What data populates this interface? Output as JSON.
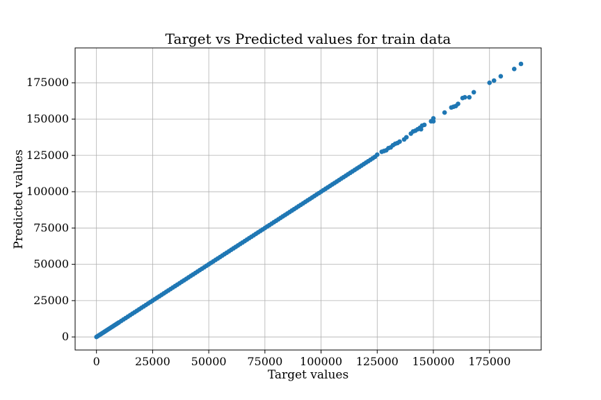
{
  "chart_data": {
    "type": "scatter",
    "title": "Target vs Predicted values for train data",
    "xlabel": "Target values",
    "ylabel": "Predicted values",
    "xlim": [
      -9500,
      198000
    ],
    "ylim": [
      -9000,
      199000
    ],
    "xticks": [
      0,
      25000,
      50000,
      75000,
      100000,
      125000,
      150000,
      175000
    ],
    "yticks": [
      0,
      25000,
      50000,
      75000,
      100000,
      125000,
      150000,
      175000
    ],
    "xtick_labels": [
      "0",
      "25000",
      "50000",
      "75000",
      "100000",
      "125000",
      "150000",
      "175000"
    ],
    "ytick_labels": [
      "0",
      "25000",
      "50000",
      "75000",
      "100000",
      "125000",
      "150000",
      "175000"
    ],
    "grid": true,
    "marker_color": "#1f77b4",
    "series": [
      {
        "points": [
          [
            0,
            0
          ],
          [
            500,
            500
          ],
          [
            1000,
            1000
          ],
          [
            1500,
            1500
          ],
          [
            2000,
            2000
          ],
          [
            2500,
            2500
          ],
          [
            3000,
            3000
          ],
          [
            3500,
            3500
          ],
          [
            4000,
            4000
          ],
          [
            4500,
            4500
          ],
          [
            5000,
            5000
          ],
          [
            5500,
            5500
          ],
          [
            6000,
            6000
          ],
          [
            6500,
            6500
          ],
          [
            7000,
            7000
          ],
          [
            7500,
            7500
          ],
          [
            8000,
            8000
          ],
          [
            8500,
            8500
          ],
          [
            9000,
            9000
          ],
          [
            9500,
            9500
          ],
          [
            10000,
            10000
          ],
          [
            11000,
            11000
          ],
          [
            12000,
            12000
          ],
          [
            13000,
            13000
          ],
          [
            14000,
            14000
          ],
          [
            15000,
            15000
          ],
          [
            16000,
            16000
          ],
          [
            17000,
            17000
          ],
          [
            18000,
            18000
          ],
          [
            19000,
            19000
          ],
          [
            20000,
            20000
          ],
          [
            21000,
            21000
          ],
          [
            22000,
            22000
          ],
          [
            23000,
            23000
          ],
          [
            24000,
            24000
          ],
          [
            25000,
            25000
          ],
          [
            26000,
            26000
          ],
          [
            27000,
            27000
          ],
          [
            28000,
            28000
          ],
          [
            29000,
            29000
          ],
          [
            30000,
            30000
          ],
          [
            31000,
            31000
          ],
          [
            32000,
            32000
          ],
          [
            33000,
            33000
          ],
          [
            34000,
            34000
          ],
          [
            35000,
            35000
          ],
          [
            36000,
            36000
          ],
          [
            37000,
            37000
          ],
          [
            38000,
            38000
          ],
          [
            39000,
            39000
          ],
          [
            40000,
            40000
          ],
          [
            41000,
            41000
          ],
          [
            42000,
            42000
          ],
          [
            43000,
            43000
          ],
          [
            44000,
            44000
          ],
          [
            45000,
            45000
          ],
          [
            46000,
            46000
          ],
          [
            47000,
            47000
          ],
          [
            48000,
            48000
          ],
          [
            49000,
            49000
          ],
          [
            50000,
            50000
          ],
          [
            51000,
            51000
          ],
          [
            52000,
            52000
          ],
          [
            53000,
            53000
          ],
          [
            54000,
            54000
          ],
          [
            55000,
            55000
          ],
          [
            56000,
            56000
          ],
          [
            57000,
            57000
          ],
          [
            58000,
            58000
          ],
          [
            59000,
            59000
          ],
          [
            60000,
            60000
          ],
          [
            61000,
            61000
          ],
          [
            62000,
            62000
          ],
          [
            63000,
            63000
          ],
          [
            64000,
            64000
          ],
          [
            65000,
            65000
          ],
          [
            66000,
            66000
          ],
          [
            67000,
            67000
          ],
          [
            68000,
            68000
          ],
          [
            69000,
            69000
          ],
          [
            70000,
            70000
          ],
          [
            71000,
            71000
          ],
          [
            72000,
            72000
          ],
          [
            73000,
            73000
          ],
          [
            74000,
            74000
          ],
          [
            75000,
            75000
          ],
          [
            76000,
            76000
          ],
          [
            77000,
            77000
          ],
          [
            78000,
            78000
          ],
          [
            79000,
            79000
          ],
          [
            80000,
            80000
          ],
          [
            81000,
            81000
          ],
          [
            82000,
            82000
          ],
          [
            83000,
            83000
          ],
          [
            84000,
            84000
          ],
          [
            85000,
            85000
          ],
          [
            86000,
            86000
          ],
          [
            87000,
            87000
          ],
          [
            88000,
            88000
          ],
          [
            89000,
            89000
          ],
          [
            90000,
            90000
          ],
          [
            91000,
            91000
          ],
          [
            92000,
            92000
          ],
          [
            93000,
            93000
          ],
          [
            94000,
            94000
          ],
          [
            95000,
            95000
          ],
          [
            96000,
            96000
          ],
          [
            97000,
            97000
          ],
          [
            98000,
            98000
          ],
          [
            99000,
            99000
          ],
          [
            100000,
            100000
          ],
          [
            101000,
            101000
          ],
          [
            102000,
            102000
          ],
          [
            103000,
            103000
          ],
          [
            104000,
            104000
          ],
          [
            105000,
            105000
          ],
          [
            106000,
            106000
          ],
          [
            107000,
            107000
          ],
          [
            108000,
            108000
          ],
          [
            109000,
            109000
          ],
          [
            110000,
            110000
          ],
          [
            111000,
            111000
          ],
          [
            112000,
            112000
          ],
          [
            113000,
            113000
          ],
          [
            114000,
            114000
          ],
          [
            115000,
            115000
          ],
          [
            116000,
            116000
          ],
          [
            117000,
            117000
          ],
          [
            118000,
            118000
          ],
          [
            119000,
            119000
          ],
          [
            120000,
            120000
          ],
          [
            121000,
            121000
          ],
          [
            122000,
            122000
          ],
          [
            123000,
            123000
          ],
          [
            124000,
            124000
          ],
          [
            125000,
            125500
          ],
          [
            127000,
            127500
          ],
          [
            128000,
            128000
          ],
          [
            129000,
            128500
          ],
          [
            130000,
            130000
          ],
          [
            131000,
            130500
          ],
          [
            132000,
            132000
          ],
          [
            133000,
            133000
          ],
          [
            134000,
            133500
          ],
          [
            135000,
            134500
          ],
          [
            137000,
            136000
          ],
          [
            138000,
            137500
          ],
          [
            140000,
            140000
          ],
          [
            141000,
            141500
          ],
          [
            142000,
            142000
          ],
          [
            143000,
            143000
          ],
          [
            144000,
            144000
          ],
          [
            145000,
            145500
          ],
          [
            146000,
            146000
          ],
          [
            144500,
            143000
          ],
          [
            149000,
            148500
          ],
          [
            150000,
            148500
          ],
          [
            150000,
            150500
          ],
          [
            155000,
            154500
          ],
          [
            158000,
            158000
          ],
          [
            159000,
            158500
          ],
          [
            160000,
            159000
          ],
          [
            161000,
            160500
          ],
          [
            163000,
            164500
          ],
          [
            164000,
            165000
          ],
          [
            166000,
            165000
          ],
          [
            168000,
            168500
          ],
          [
            175000,
            175000
          ],
          [
            177000,
            176500
          ],
          [
            180000,
            179500
          ],
          [
            186000,
            184500
          ],
          [
            189000,
            188000
          ]
        ]
      }
    ]
  }
}
